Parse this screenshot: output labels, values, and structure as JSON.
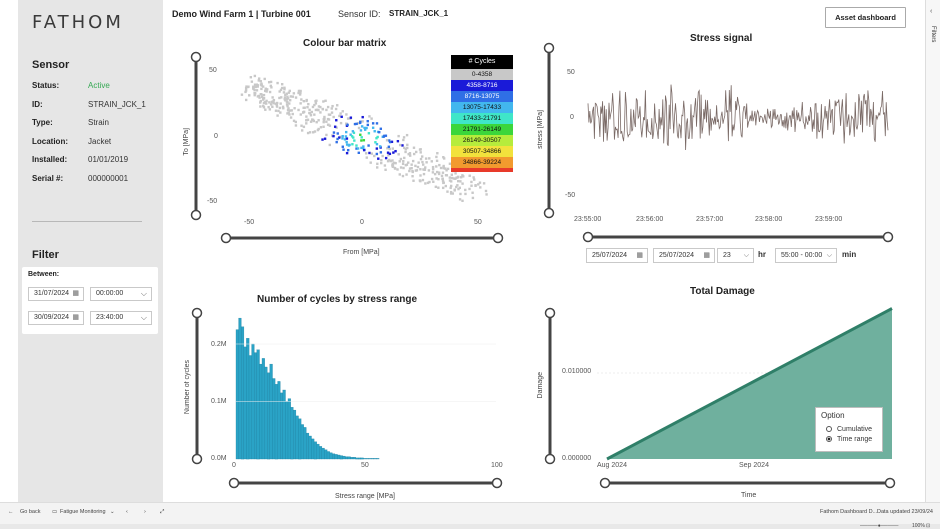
{
  "logo": "FATHOM",
  "header": {
    "title": "Demo Wind Farm 1 | Turbine  001",
    "sensor_label": "Sensor ID:",
    "sensor_id": "STRAIN_JCK_1",
    "asset_button": "Asset dashboard"
  },
  "filters_panel": {
    "label": "Filters"
  },
  "sensor": {
    "heading": "Sensor",
    "rows": [
      {
        "key": "Status:",
        "value": "Active"
      },
      {
        "key": "ID:",
        "value": "STRAIN_JCK_1"
      },
      {
        "key": "Type:",
        "value": "Strain"
      },
      {
        "key": "Location:",
        "value": "Jacket"
      },
      {
        "key": "Installed:",
        "value": "01/01/2019"
      },
      {
        "key": "Serial #:",
        "value": "000000001"
      }
    ],
    "status_color": "#35a853"
  },
  "filter": {
    "heading": "Filter",
    "between_label": "Between:",
    "start_date": "31/07/2024",
    "start_time": "00:00:00",
    "end_date": "30/09/2024",
    "end_time": "23:40:00"
  },
  "matrix_chart": {
    "title": "Colour bar matrix",
    "xlabel": "From [MPa]",
    "ylabel": "To [MPa]",
    "xticks": [
      "-50",
      "0",
      "50"
    ],
    "yticks": [
      "50",
      "0",
      "-50"
    ],
    "legend_title": "# Cycles",
    "legend": [
      {
        "label": "0-4358",
        "color": "#c8c8c8"
      },
      {
        "label": "4358-8716",
        "color": "#1a1ad8"
      },
      {
        "label": "8716-13075",
        "color": "#2f6fe6"
      },
      {
        "label": "13075-17433",
        "color": "#42b7ee"
      },
      {
        "label": "17433-21791",
        "color": "#3fe6c8"
      },
      {
        "label": "21791-26149",
        "color": "#3bd63b"
      },
      {
        "label": "26149-30507",
        "color": "#b6ec3c"
      },
      {
        "label": "30507-34866",
        "color": "#f2e23c"
      },
      {
        "label": "34866-39224",
        "color": "#f29a2e"
      },
      {
        "label": "",
        "color": "#e83a2a"
      }
    ]
  },
  "signal_chart": {
    "title": "Stress signal",
    "ylabel": "stress [MPa]",
    "yticks": [
      "50",
      "0",
      "-50"
    ],
    "xticks": [
      "23:55:00",
      "23:56:00",
      "23:57:00",
      "23:58:00",
      "23:59:00"
    ],
    "line_color": "#7a6a66",
    "controls": {
      "date_from": "25/07/2024",
      "date_to": "25/07/2024",
      "hour": "23",
      "hour_unit": "hr",
      "minute_range": "55:00 - 00:00",
      "minute_unit": "min"
    }
  },
  "cycles_chart": {
    "title": "Number of cycles by stress range",
    "xlabel": "Stress range [MPa]",
    "ylabel": "Number of cycles",
    "xticks": [
      "0",
      "50",
      "100"
    ],
    "yticks": [
      "0.2M",
      "0.1M",
      "0.0M"
    ],
    "bar_color": "#2aa3c6"
  },
  "damage_chart": {
    "title": "Total Damage",
    "xlabel": "Time",
    "ylabel": "Damage",
    "yticks": [
      "0.010000",
      "0.000000"
    ],
    "xticks": [
      "Aug 2024",
      "Sep 2024"
    ],
    "line_color": "#2f7f68",
    "fill_color": "#6fb09e",
    "option": {
      "title": "Option",
      "items": [
        {
          "label": "Cumulative",
          "selected": false
        },
        {
          "label": "Time range",
          "selected": true
        }
      ]
    }
  },
  "chart_data": [
    {
      "type": "heatmap",
      "title": "Colour bar matrix",
      "xlabel": "From [MPa]",
      "ylabel": "To [MPa]",
      "xlim": [
        -60,
        60
      ],
      "ylim": [
        -55,
        55
      ],
      "note_structure": "points concentrated along a band from top-left to bottom-right, dense center near (0,0)",
      "legend": [
        "0-4358",
        "4358-8716",
        "8716-13075",
        "13075-17433",
        "17433-21791",
        "21791-26149",
        "26149-30507",
        "30507-34866",
        "34866-39224"
      ]
    },
    {
      "type": "line",
      "title": "Stress signal",
      "ylabel": "stress [MPa]",
      "ylim": [
        -60,
        60
      ],
      "x": [
        "23:55:00",
        "23:56:00",
        "23:57:00",
        "23:58:00",
        "23:59:00"
      ],
      "amplitude_note": "oscillating signal around 0, amplitude mostly within +/-30, peaks near +/-55"
    },
    {
      "type": "bar",
      "title": "Number of cycles by stress range",
      "xlabel": "Stress range [MPa]",
      "ylabel": "Number of cycles",
      "xlim": [
        0,
        100
      ],
      "ylim": [
        0,
        0.25
      ],
      "unit": "M",
      "x": [
        1,
        2,
        3,
        4,
        5,
        6,
        7,
        8,
        9,
        10,
        11,
        12,
        13,
        14,
        15,
        16,
        17,
        18,
        19,
        20,
        21,
        22,
        23,
        24,
        25,
        26,
        27,
        28,
        29,
        30,
        31,
        32,
        33,
        34,
        35,
        36,
        37,
        38,
        39,
        40,
        41,
        42,
        43,
        44,
        45,
        46,
        47,
        48,
        49,
        50,
        51,
        52,
        53,
        54,
        55
      ],
      "values": [
        0.225,
        0.245,
        0.23,
        0.195,
        0.21,
        0.18,
        0.2,
        0.185,
        0.19,
        0.165,
        0.175,
        0.16,
        0.15,
        0.165,
        0.14,
        0.13,
        0.135,
        0.115,
        0.12,
        0.1,
        0.105,
        0.09,
        0.085,
        0.075,
        0.07,
        0.06,
        0.055,
        0.045,
        0.04,
        0.035,
        0.03,
        0.026,
        0.022,
        0.019,
        0.016,
        0.013,
        0.011,
        0.009,
        0.008,
        0.007,
        0.006,
        0.005,
        0.004,
        0.004,
        0.003,
        0.003,
        0.002,
        0.002,
        0.002,
        0.001,
        0.001,
        0.001,
        0.001,
        0.001,
        0.001
      ]
    },
    {
      "type": "area",
      "title": "Total Damage",
      "xlabel": "Time",
      "ylabel": "Damage",
      "x": [
        "2024-07-31",
        "2024-09-30"
      ],
      "values": [
        0.0,
        0.0175
      ],
      "ylim": [
        0,
        0.018
      ],
      "xticks": [
        "Aug 2024",
        "Sep 2024"
      ]
    }
  ],
  "statusbar": {
    "back": "Go back",
    "page_tab": "Fatigue Monitoring",
    "report_name": "Fathom Dashboard D...",
    "updated": "Data updated 23/09/24",
    "zoom": "100%"
  }
}
